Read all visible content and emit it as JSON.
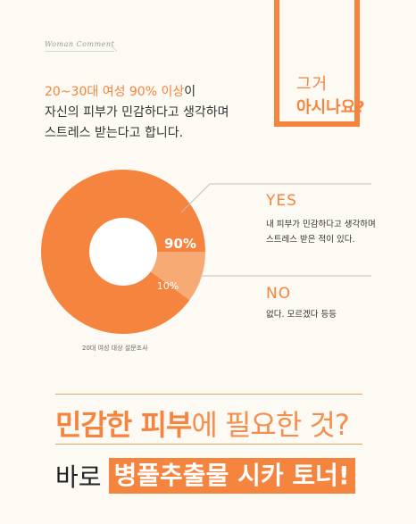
{
  "section_label": "Woman Comment",
  "intro": {
    "accent": "20~30대 여성  90% 이상",
    "line1_rest": "이",
    "line2": "자신의 피부가 민감하다고 생각하며",
    "line3": "스트레스 받는다고 합니다."
  },
  "question": {
    "line1": "그거",
    "line2": "아시나요?"
  },
  "chart_data": {
    "type": "pie",
    "categories": [
      "YES",
      "NO"
    ],
    "values": [
      90,
      10
    ],
    "value_labels": [
      "90%",
      "10%"
    ],
    "colors": [
      "#f5843f",
      "#f8aa75"
    ],
    "legend": [
      {
        "title": "YES",
        "desc_lines": [
          "내 피부가 민감하다고 생각하며",
          "스트레스 받은 적이 있다."
        ]
      },
      {
        "title": "NO",
        "desc_lines": [
          "없다. 모르겠다 등등"
        ]
      }
    ],
    "caption": "20대 여성 대상 설문조사"
  },
  "headline": {
    "strong": "민감한 피부",
    "rest": "에 필요한 것?",
    "prefix": "바로",
    "product": "병풀추출물 시카 토너!"
  },
  "colors": {
    "accent": "#f5843f",
    "accent_light": "#f8aa75",
    "background": "#fdf9f3"
  }
}
